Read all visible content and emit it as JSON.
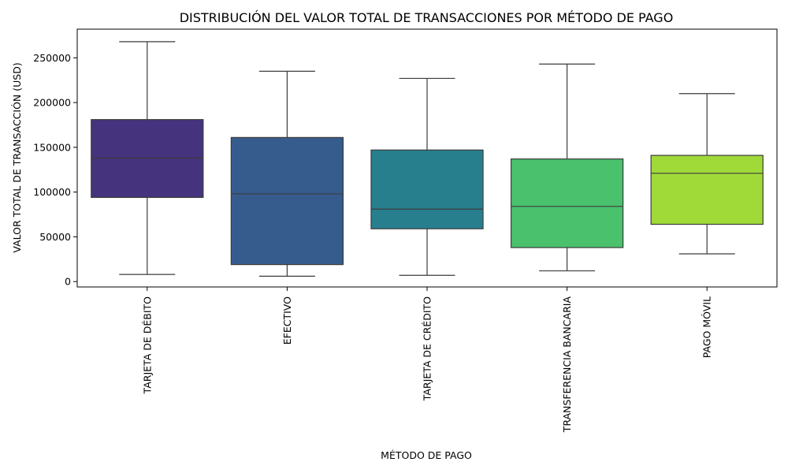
{
  "chart_data": {
    "type": "box",
    "title": "DISTRIBUCIÓN DEL VALOR TOTAL DE TRANSACCIONES POR MÉTODO DE PAGO",
    "xlabel": "MÉTODO DE PAGO",
    "ylabel": "VALOR TOTAL DE TRANSACCIÓN (USD)",
    "ylim": [
      -6000,
      282000
    ],
    "yticks": [
      0,
      50000,
      100000,
      150000,
      200000,
      250000
    ],
    "grid": false,
    "categories": [
      "TARJETA DE DÉBITO",
      "EFECTIVO",
      "TARJETA DE CRÉDITO",
      "TRANSFERENCIA BANCARIA",
      "PAGO MÓVIL"
    ],
    "boxes": [
      {
        "category": "TARJETA DE DÉBITO",
        "whisker_low": 8000,
        "q1": 94000,
        "median": 138000,
        "q3": 181000,
        "whisker_high": 268000,
        "color": "#46337e"
      },
      {
        "category": "EFECTIVO",
        "whisker_low": 6000,
        "q1": 19000,
        "median": 98000,
        "q3": 161000,
        "whisker_high": 235000,
        "color": "#365c8d"
      },
      {
        "category": "TARJETA DE CRÉDITO",
        "whisker_low": 7000,
        "q1": 59000,
        "median": 81000,
        "q3": 147000,
        "whisker_high": 227000,
        "color": "#277f8e"
      },
      {
        "category": "TRANSFERENCIA BANCARIA",
        "whisker_low": 12000,
        "q1": 38000,
        "median": 84000,
        "q3": 137000,
        "whisker_high": 243000,
        "color": "#4ac16d"
      },
      {
        "category": "PAGO MÓVIL",
        "whisker_low": 31000,
        "q1": 64000,
        "median": 121000,
        "q3": 141000,
        "whisker_high": 210000,
        "color": "#a0da39"
      }
    ]
  }
}
